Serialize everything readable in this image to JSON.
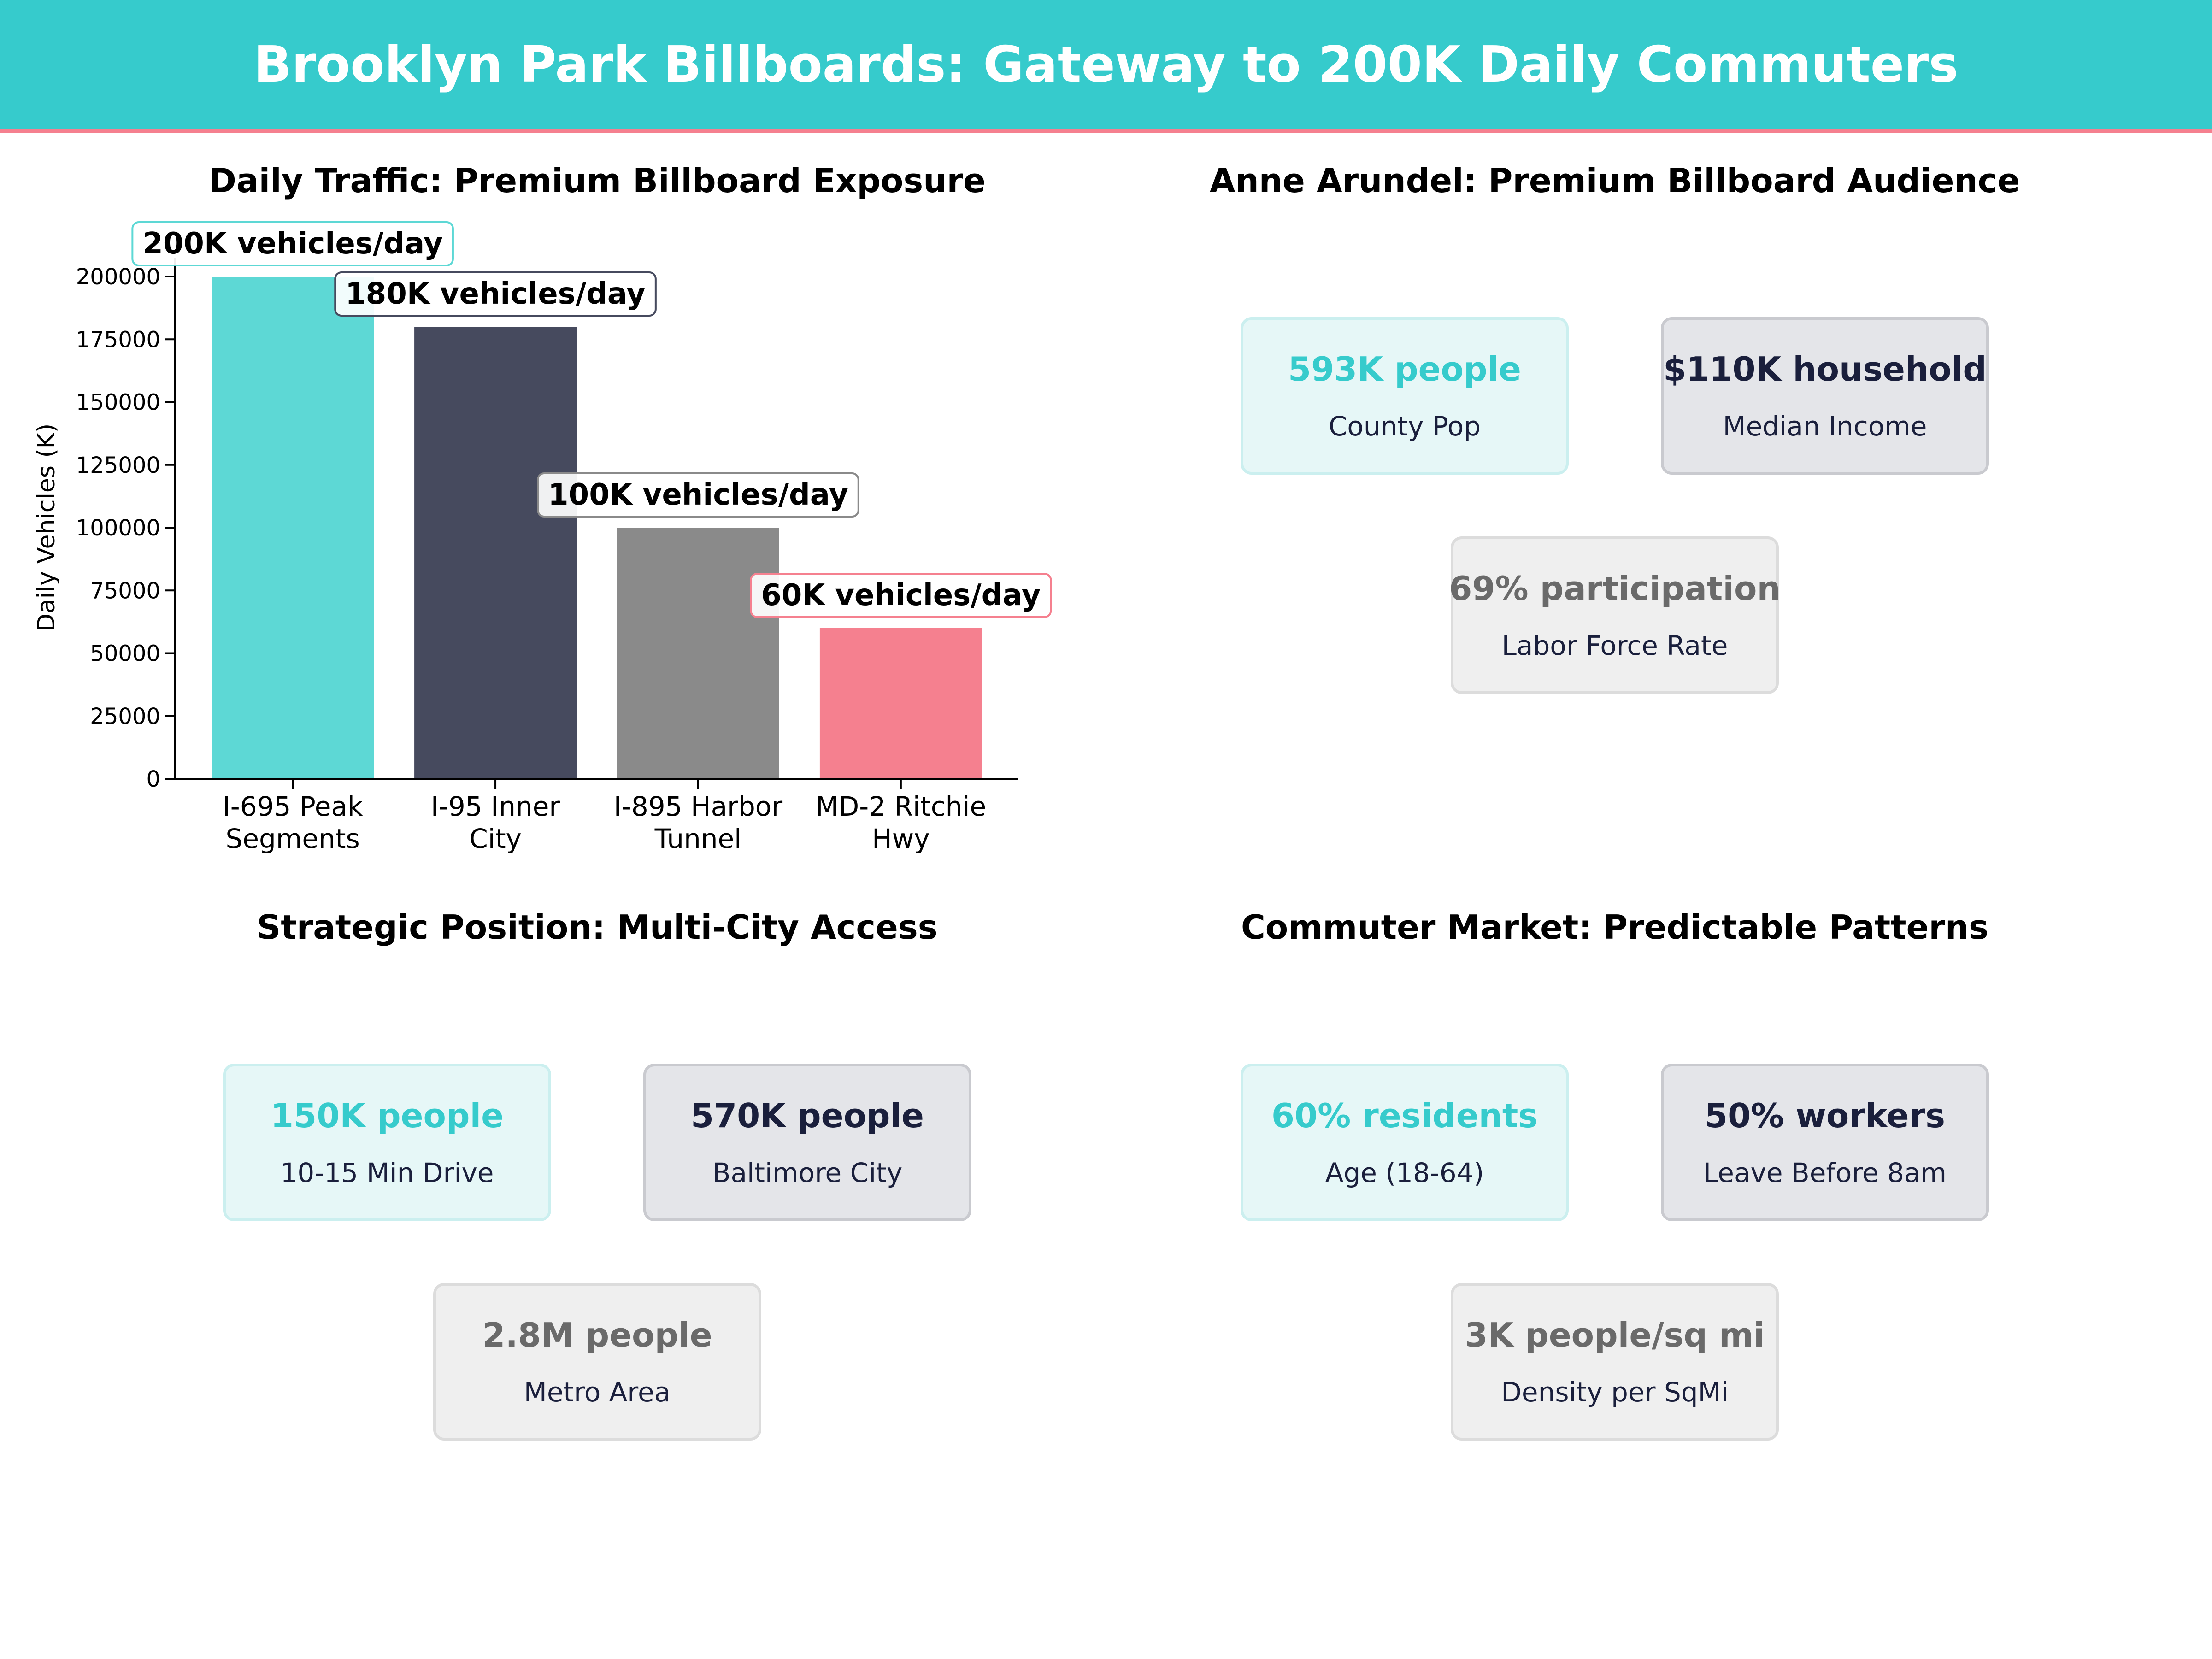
{
  "banner": {
    "title": "Brooklyn Park Billboards: Gateway to 200K Daily Commuters"
  },
  "colors": {
    "teal": "#36CBCC",
    "navy": "#1a1f3c",
    "gray": "#6A6A6A",
    "pink": "#F5808F"
  },
  "chart_data": {
    "type": "bar",
    "title": "Daily Traffic: Premium Billboard Exposure",
    "xlabel": "",
    "ylabel": "Daily Vehicles (K)",
    "ylim": [
      0,
      200000
    ],
    "yticks": [
      "0",
      "25000",
      "50000",
      "75000",
      "100000",
      "125000",
      "150000",
      "175000",
      "200000"
    ],
    "categories": [
      [
        "I-695 Peak",
        "Segments"
      ],
      [
        "I-95 Inner",
        "City"
      ],
      [
        "I-895 Harbor",
        "Tunnel"
      ],
      [
        "MD-2 Ritchie",
        "Hwy"
      ]
    ],
    "values": [
      200000,
      180000,
      100000,
      60000
    ],
    "data_labels": [
      "200K vehicles/day",
      "180K vehicles/day",
      "100K vehicles/day",
      "60K vehicles/day"
    ],
    "bar_colors": [
      "#5DD8D5",
      "#464A5E",
      "#8A8A8A",
      "#F5808F"
    ],
    "grid": false
  },
  "panels": {
    "demographics": {
      "title": "Anne Arundel: Premium Billboard Audience",
      "cards": [
        {
          "value": "593K people",
          "caption": "County Pop"
        },
        {
          "value": "$110K household",
          "caption": "Median Income"
        },
        {
          "value": "69% participation",
          "caption": "Labor Force Rate"
        }
      ]
    },
    "position": {
      "title": "Strategic Position: Multi-City Access",
      "cards": [
        {
          "value": "150K people",
          "caption": "10-15 Min Drive"
        },
        {
          "value": "570K people",
          "caption": "Baltimore City"
        },
        {
          "value": "2.8M people",
          "caption": "Metro Area"
        }
      ]
    },
    "commuter": {
      "title": "Commuter Market: Predictable Patterns",
      "cards": [
        {
          "value": "60% residents",
          "caption": "Age (18-64)"
        },
        {
          "value": "50% workers",
          "caption": "Leave Before 8am"
        },
        {
          "value": "3K people/sq mi",
          "caption": "Density per SqMi"
        }
      ]
    }
  }
}
